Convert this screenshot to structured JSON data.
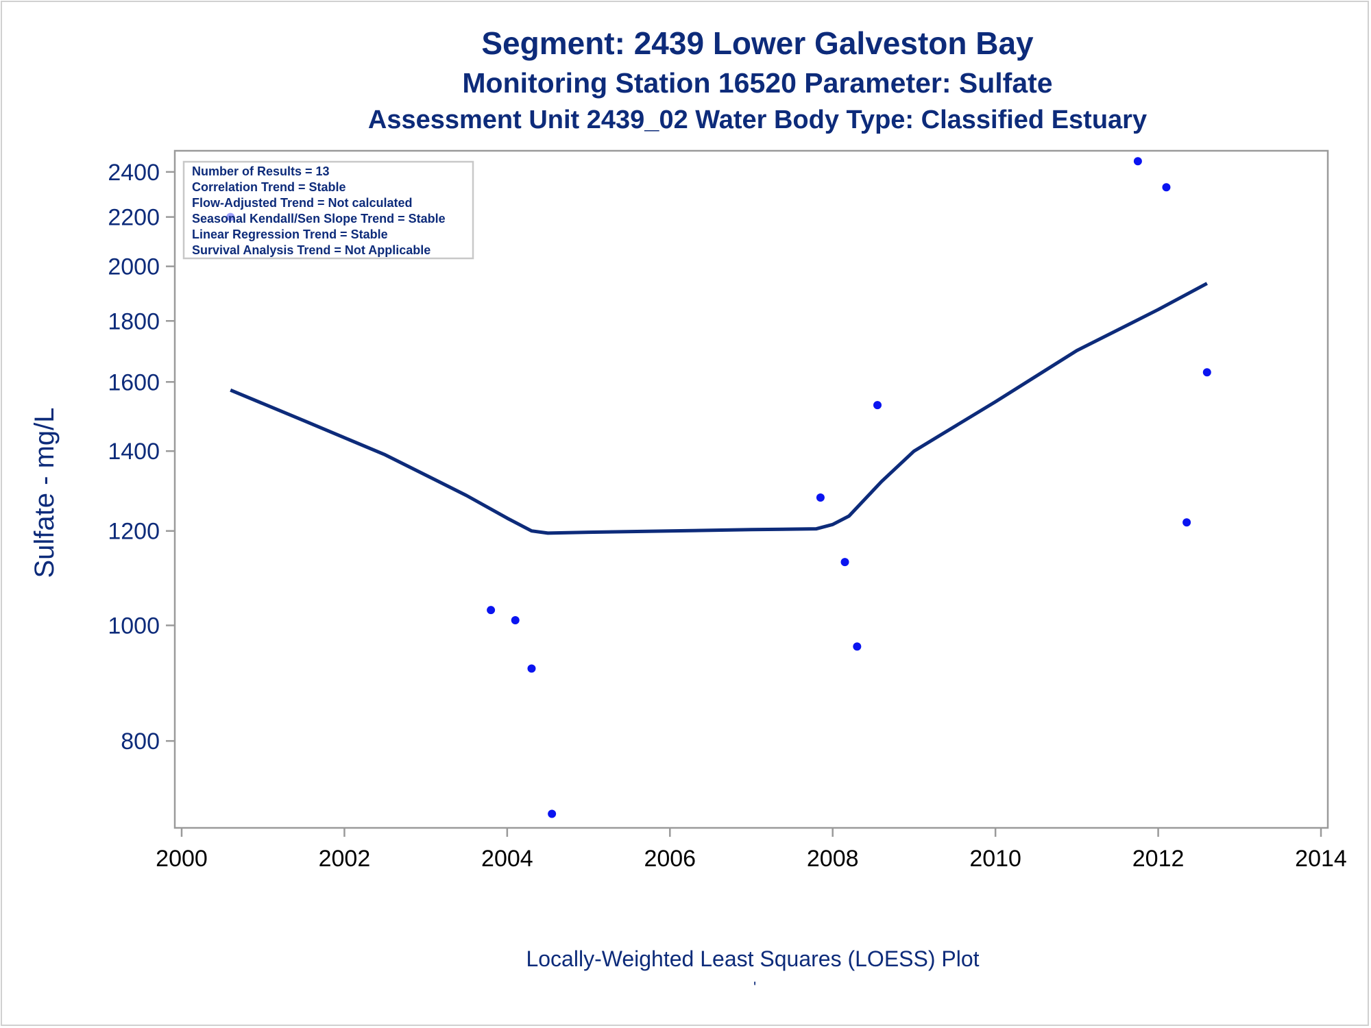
{
  "colors": {
    "title": "#0d2b7a",
    "axis_text": "#0d2b7a",
    "x_tick_text": "#000000",
    "axis_line": "#9a9a9a",
    "points": "#0a14f0",
    "loess_line": "#0d2b7a",
    "legend_border": "#c8c8c8",
    "legend_text": "#0d2b7a"
  },
  "titles": {
    "line1": "Segment: 2439  Lower Galveston Bay",
    "line2": "Monitoring Station 16520 Parameter: Sulfate",
    "line3": "Assessment Unit 2439_02   Water Body Type: Classified Estuary"
  },
  "footnote": "Locally-Weighted Least Squares (LOESS) Plot",
  "footnote_mark": "'",
  "legend": {
    "lines": [
      "Number of Results = 13",
      "Correlation Trend = Stable",
      "Flow-Adjusted Trend = Not calculated",
      "Seasonal Kendall/Sen Slope Trend = Stable",
      "Linear Regression Trend = Stable",
      "Survival Analysis Trend = Not Applicable"
    ]
  },
  "chart_data": {
    "type": "scatter",
    "ylabel": "Sulfate - mg/L",
    "xlabel": "",
    "yscale": "log",
    "xlim": [
      2000,
      2014
    ],
    "ylim": [
      680,
      2500
    ],
    "x_ticks": [
      2000,
      2002,
      2004,
      2006,
      2008,
      2010,
      2012,
      2014
    ],
    "y_ticks": [
      800,
      1000,
      1200,
      1400,
      1600,
      1800,
      2000,
      2200,
      2400
    ],
    "grid": false,
    "legend_position": "top-left",
    "series": [
      {
        "kind": "points",
        "x": [
          2000.6,
          2003.8,
          2004.1,
          2004.3,
          2004.55,
          2007.85,
          2008.15,
          2008.3,
          2008.55,
          2011.75,
          2012.1,
          2012.35,
          2012.6
        ],
        "y": [
          2200,
          1030,
          1010,
          920,
          695,
          1280,
          1130,
          960,
          1530,
          2450,
          2330,
          1220,
          1630
        ]
      },
      {
        "kind": "loess",
        "x": [
          2000.6,
          2001.5,
          2002.5,
          2003.5,
          2004.0,
          2004.3,
          2004.5,
          2005.0,
          2006.0,
          2007.0,
          2007.8,
          2008.0,
          2008.2,
          2008.6,
          2009.0,
          2010.0,
          2011.0,
          2012.0,
          2012.6
        ],
        "y": [
          1575,
          1485,
          1390,
          1285,
          1230,
          1200,
          1195,
          1197,
          1200,
          1203,
          1205,
          1215,
          1235,
          1320,
          1400,
          1540,
          1700,
          1840,
          1935
        ]
      }
    ]
  }
}
